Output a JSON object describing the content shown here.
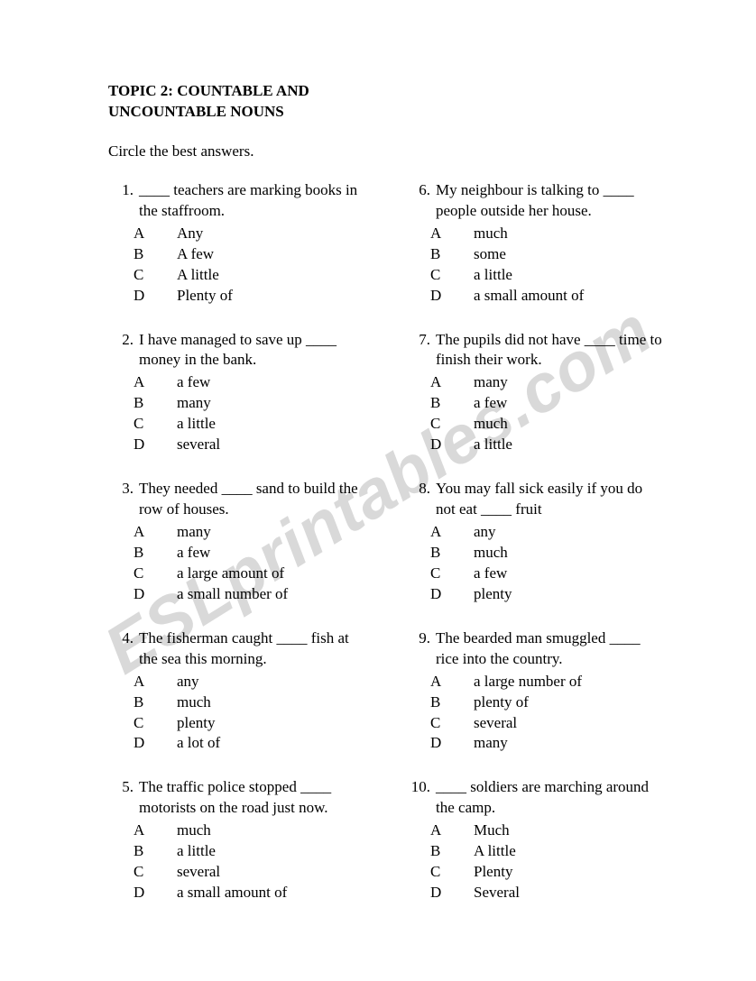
{
  "title_line1": "TOPIC 2: COUNTABLE AND",
  "title_line2": "UNCOUNTABLE NOUNS",
  "instructions": "Circle the best answers.",
  "watermark": "ESLprintables.com",
  "left": [
    {
      "num": "1.",
      "text": "____ teachers are marking books in the staffroom.",
      "opts": [
        {
          "l": "A",
          "t": "Any"
        },
        {
          "l": "B",
          "t": "A few"
        },
        {
          "l": "C",
          "t": "A little"
        },
        {
          "l": "D",
          "t": "Plenty of"
        }
      ]
    },
    {
      "num": "2.",
      "text": "I have managed to save up ____ money in the bank.",
      "opts": [
        {
          "l": "A",
          "t": "a few"
        },
        {
          "l": "B",
          "t": "many"
        },
        {
          "l": "C",
          "t": "a little"
        },
        {
          "l": "D",
          "t": "several"
        }
      ]
    },
    {
      "num": "3.",
      "text": "They needed ____ sand to build the row of houses.",
      "opts": [
        {
          "l": "A",
          "t": "many"
        },
        {
          "l": "B",
          "t": "a few"
        },
        {
          "l": "C",
          "t": "a large amount of"
        },
        {
          "l": "D",
          "t": "a small number of"
        }
      ]
    },
    {
      "num": "4.",
      "text": "The fisherman caught ____ fish at the sea this morning.",
      "opts": [
        {
          "l": "A",
          "t": "any"
        },
        {
          "l": "B",
          "t": "much"
        },
        {
          "l": "C",
          "t": "plenty"
        },
        {
          "l": "D",
          "t": "a lot of"
        }
      ]
    },
    {
      "num": "5.",
      "text": "The traffic police stopped ____ motorists on the road just now.",
      "opts": [
        {
          "l": "A",
          "t": "much"
        },
        {
          "l": "B",
          "t": "a little"
        },
        {
          "l": "C",
          "t": "several"
        },
        {
          "l": "D",
          "t": "a small amount of"
        }
      ]
    }
  ],
  "right": [
    {
      "num": "6.",
      "text": "My neighbour is talking to ____ people outside her house.",
      "opts": [
        {
          "l": "A",
          "t": "much"
        },
        {
          "l": "B",
          "t": "some"
        },
        {
          "l": "C",
          "t": "a little"
        },
        {
          "l": "D",
          "t": "a small amount of"
        }
      ]
    },
    {
      "num": "7.",
      "text": "The pupils did not have ____ time to finish their work.",
      "opts": [
        {
          "l": "A",
          "t": "many"
        },
        {
          "l": "B",
          "t": "a few"
        },
        {
          "l": "C",
          "t": "much"
        },
        {
          "l": "D",
          "t": "a little"
        }
      ]
    },
    {
      "num": "8.",
      "text": "You may fall sick easily if you do not eat ____ fruit",
      "opts": [
        {
          "l": "A",
          "t": "any"
        },
        {
          "l": "B",
          "t": "much"
        },
        {
          "l": "C",
          "t": "a few"
        },
        {
          "l": "D",
          "t": "plenty"
        }
      ]
    },
    {
      "num": "9.",
      "text": "The bearded man smuggled ____ rice into the country.",
      "opts": [
        {
          "l": "A",
          "t": "a large number of"
        },
        {
          "l": "B",
          "t": "plenty of"
        },
        {
          "l": "C",
          "t": "several"
        },
        {
          "l": "D",
          "t": "many"
        }
      ]
    },
    {
      "num": "10.",
      "text": "____ soldiers are marching around the camp.",
      "opts": [
        {
          "l": "A",
          "t": "Much"
        },
        {
          "l": "B",
          "t": "A little"
        },
        {
          "l": "C",
          "t": "Plenty"
        },
        {
          "l": "D",
          "t": "Several"
        }
      ]
    }
  ]
}
